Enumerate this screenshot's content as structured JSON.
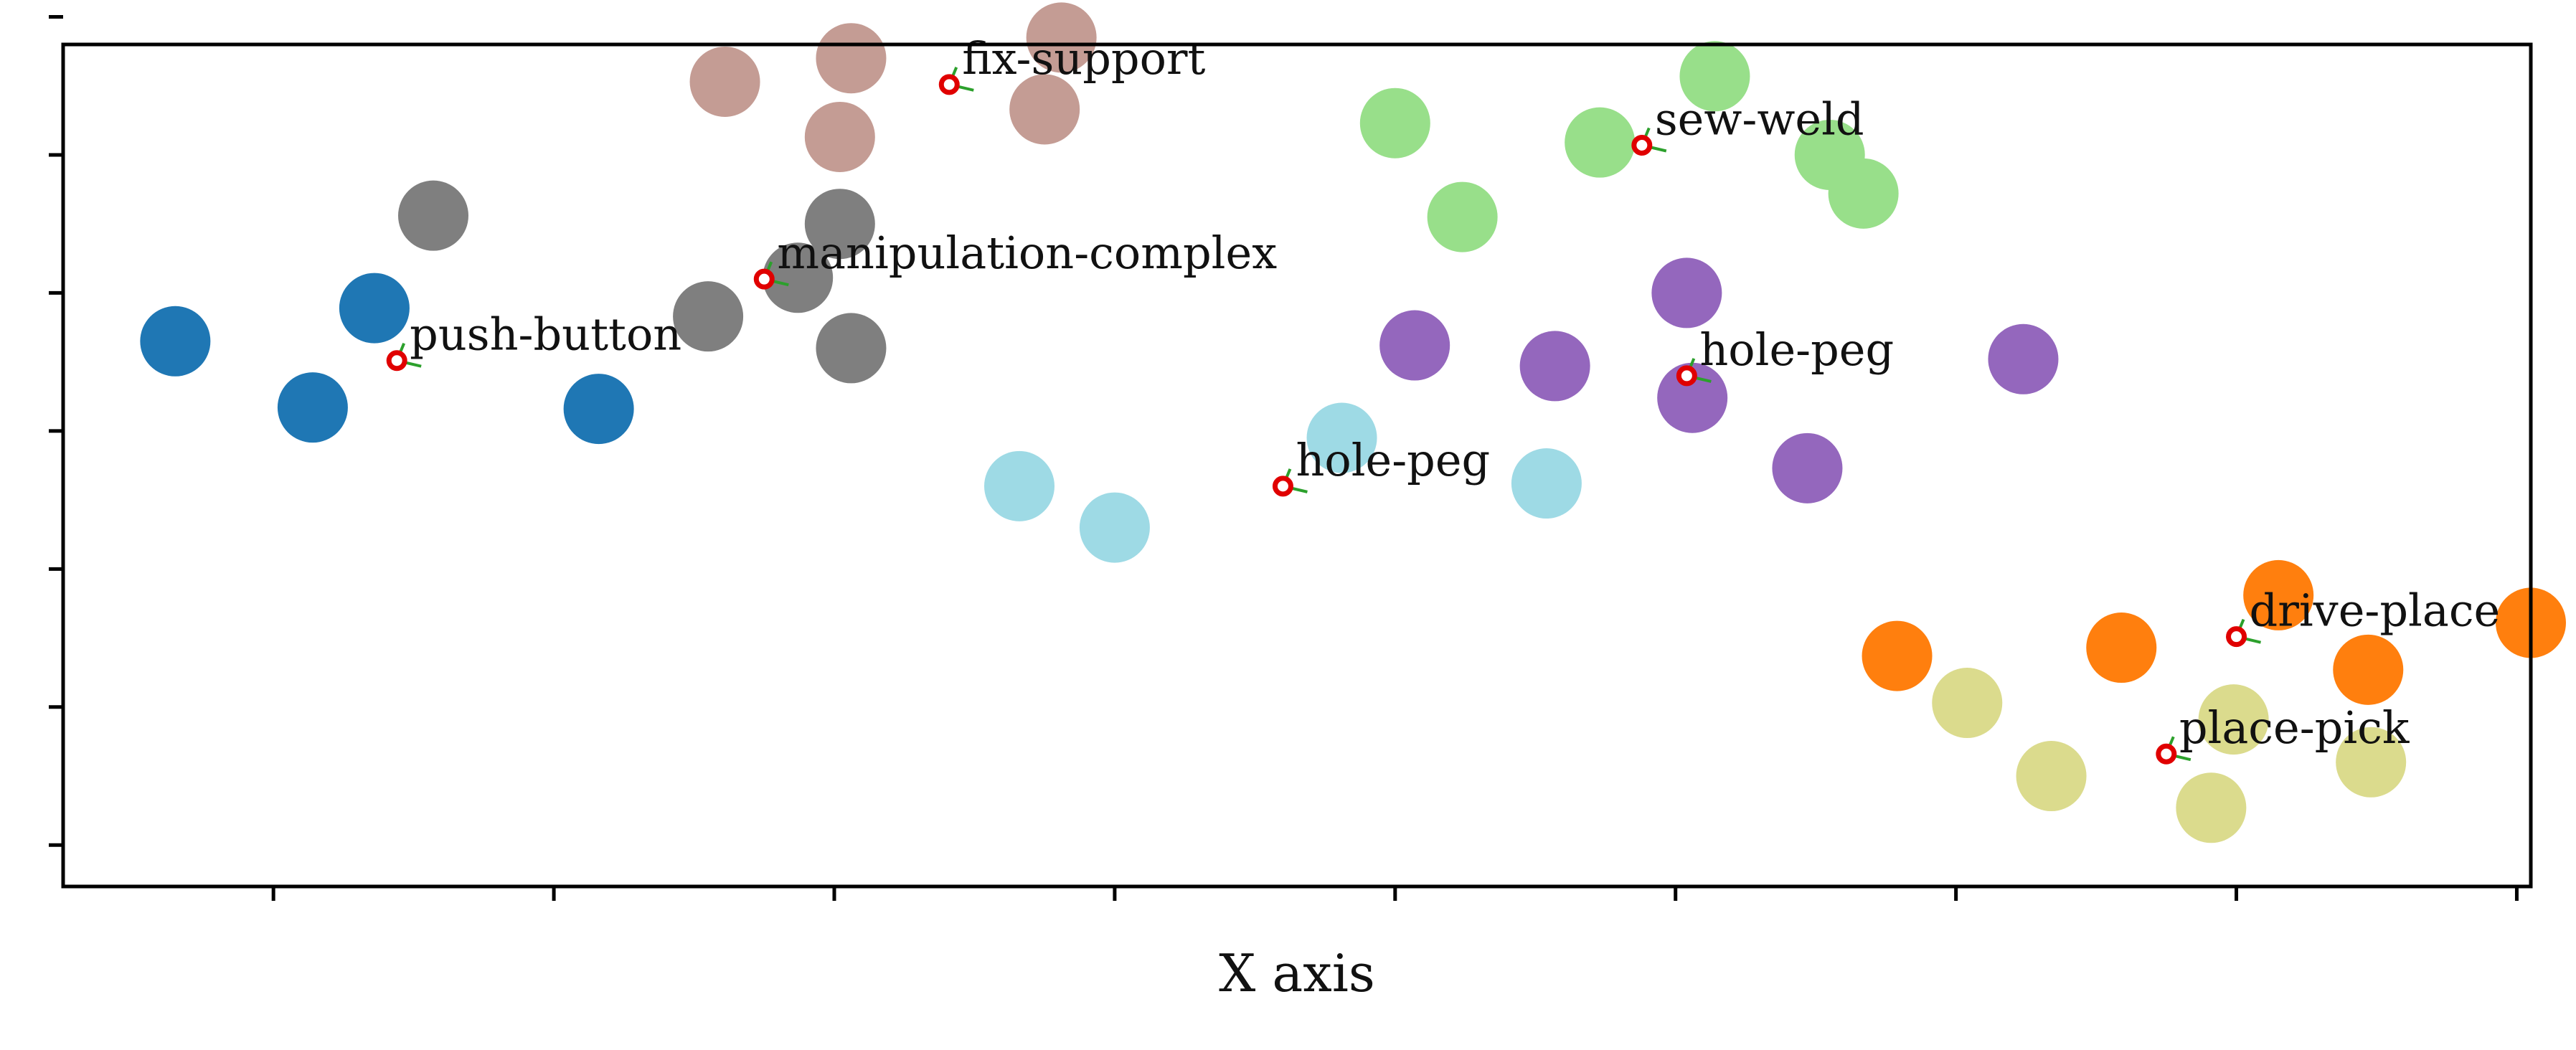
{
  "chart_data": {
    "type": "scatter",
    "xlabel": "X axis",
    "ylabel": "",
    "title": "",
    "xlim": [
      -0.5,
      8.3
    ],
    "ylim": [
      -0.3,
      5.8
    ],
    "x_ticks": [
      0.25,
      1.25,
      2.25,
      3.25,
      4.25,
      5.25,
      6.25,
      7.25,
      8.25
    ],
    "y_ticks": [
      0.0,
      1.0,
      2.0,
      3.0,
      4.0,
      5.0,
      6.0
    ],
    "tick_labels_visible": false,
    "grid": false,
    "clusters": [
      {
        "label": "push-button",
        "color": "#1f77b4",
        "points": [
          [
            -0.1,
            3.65
          ],
          [
            0.39,
            3.17
          ],
          [
            0.61,
            3.89
          ],
          [
            1.41,
            3.16
          ]
        ],
        "center": [
          0.69,
          3.51
        ]
      },
      {
        "label": "manipulation-complex",
        "color": "#7f7f7f",
        "points": [
          [
            0.82,
            4.56
          ],
          [
            1.8,
            3.83
          ],
          [
            2.12,
            4.11
          ],
          [
            2.27,
            4.5
          ],
          [
            2.31,
            3.6
          ]
        ],
        "center": [
          2.0,
          4.1
        ]
      },
      {
        "label": "fix-support",
        "color": "#c49c94",
        "points": [
          [
            1.86,
            5.53
          ],
          [
            2.27,
            5.13
          ],
          [
            2.31,
            5.7
          ],
          [
            3.0,
            5.33
          ],
          [
            3.06,
            5.85
          ]
        ],
        "center": [
          2.66,
          5.51
        ]
      },
      {
        "label": "hole-peg",
        "color": "#9edae5",
        "points": [
          [
            2.91,
            2.6
          ],
          [
            3.25,
            2.3
          ],
          [
            4.06,
            2.95
          ],
          [
            4.79,
            2.62
          ]
        ],
        "center": [
          3.85,
          2.6
        ]
      },
      {
        "label": "sew-weld",
        "color": "#98df8a",
        "points": [
          [
            4.25,
            5.23
          ],
          [
            4.49,
            4.55
          ],
          [
            4.98,
            5.09
          ],
          [
            5.39,
            5.57
          ],
          [
            5.8,
            5.0
          ],
          [
            5.92,
            4.72
          ]
        ],
        "center": [
          5.13,
          5.07
        ]
      },
      {
        "label": "hole-peg",
        "color": "#9467bd",
        "points": [
          [
            4.32,
            3.62
          ],
          [
            4.82,
            3.47
          ],
          [
            5.29,
            4.0
          ],
          [
            5.31,
            3.24
          ],
          [
            5.72,
            2.73
          ],
          [
            6.49,
            3.52
          ]
        ],
        "center": [
          5.29,
          3.4
        ]
      },
      {
        "label": "drive-place",
        "color": "#ff7f0e",
        "points": [
          [
            6.04,
            1.37
          ],
          [
            6.84,
            1.43
          ],
          [
            7.4,
            1.81
          ],
          [
            7.72,
            1.27
          ],
          [
            8.3,
            1.61
          ]
        ],
        "center": [
          7.25,
          1.51
        ]
      },
      {
        "label": "place-pick",
        "color": "#dbdb8d",
        "points": [
          [
            6.29,
            1.03
          ],
          [
            6.59,
            0.5
          ],
          [
            7.16,
            0.27
          ],
          [
            7.24,
            0.91
          ],
          [
            7.73,
            0.6
          ]
        ],
        "center": [
          7.0,
          0.66
        ]
      }
    ]
  }
}
